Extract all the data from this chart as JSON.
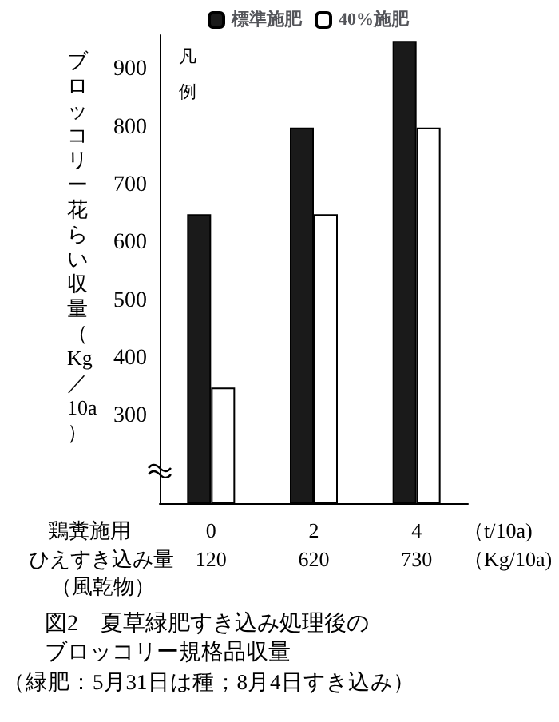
{
  "chart_data": {
    "type": "bar",
    "title": "図2　夏草緑肥すき込み処理後のブロッコリー規格品収量",
    "subtitle": "（緑肥：5月31日は種；8月4日すき込み）",
    "ylabel": "ブロッコリー花らい収量（Kg／10a）",
    "legend_title": "凡例",
    "categories": [
      "0\n120",
      "2\n620",
      "4\n730"
    ],
    "series": [
      {
        "name": "標準施肥",
        "color": "#1a1a1a",
        "values": [
          650,
          800,
          950
        ]
      },
      {
        "name": "40%施肥",
        "color": "#ffffff",
        "values": [
          350,
          650,
          800
        ]
      }
    ],
    "annotations": [
      "鶏糞施用",
      "ひえすき込み量",
      "（風乾物）",
      "（t/10a)",
      "（Kg/10a)"
    ],
    "ylim": [
      150,
      960
    ],
    "yticks": [
      300,
      400,
      500,
      600,
      700,
      800,
      900
    ],
    "grid": false,
    "legend": "top left"
  }
}
